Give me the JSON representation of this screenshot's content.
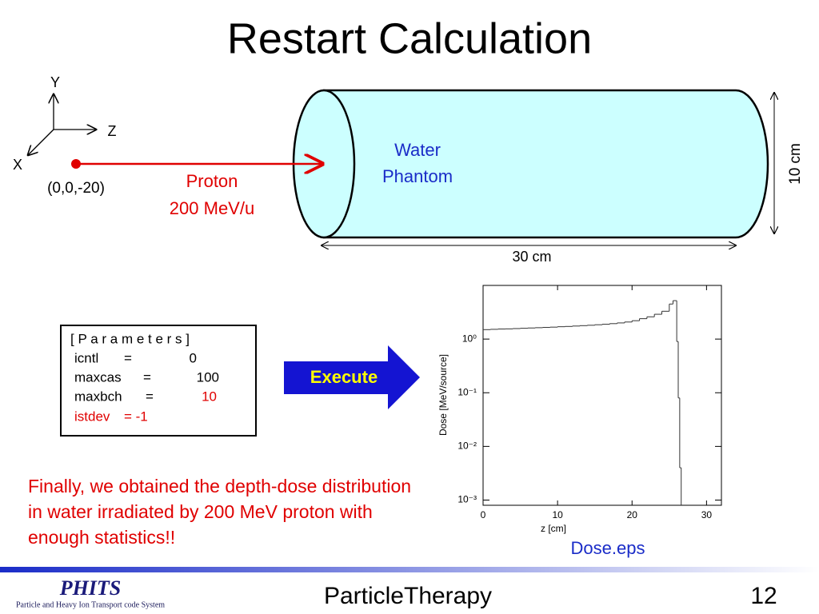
{
  "title": "Restart Calculation",
  "geometry": {
    "axes": {
      "y": "Y",
      "z": "Z",
      "x": "X"
    },
    "source_position": "(0,0,-20)",
    "beam": [
      "Proton",
      "200 MeV/u"
    ],
    "target": [
      "Water",
      "Phantom"
    ],
    "diameter": "10 cm",
    "length": "30 cm"
  },
  "parameters": {
    "header": "[ P a r a m e t e r s ]",
    "rows": [
      [
        "icntl",
        "=",
        "0"
      ],
      [
        "maxcas",
        "=",
        "100"
      ],
      [
        "maxbch",
        "=",
        "10"
      ],
      [
        "istdev",
        "= -1"
      ]
    ]
  },
  "button": "Execute",
  "caption": "Finally, we obtained the depth-dose distribution in water irradiated by 200 MeV proton with enough statistics!!",
  "chart_data": {
    "type": "histogram",
    "xlabel": "z [cm]",
    "ylabel": "Dose [MeV/source]",
    "bins": [
      0,
      1,
      2,
      3,
      4,
      5,
      6,
      7,
      8,
      9,
      10,
      11,
      12,
      13,
      14,
      15,
      16,
      17,
      18,
      19,
      20,
      21,
      22,
      23,
      24,
      25,
      25.5,
      26,
      26.2,
      26.4,
      26.6,
      26.8
    ],
    "values": [
      1.5,
      1.52,
      1.54,
      1.55,
      1.57,
      1.59,
      1.61,
      1.63,
      1.65,
      1.67,
      1.7,
      1.72,
      1.75,
      1.78,
      1.81,
      1.85,
      1.89,
      1.94,
      2.0,
      2.08,
      2.2,
      2.4,
      2.6,
      2.9,
      3.3,
      4.5,
      5.2,
      0.9,
      0.08,
      0.004,
      0.0006
    ],
    "color": "#333333",
    "xlim": [
      0,
      32
    ],
    "ylim": [
      0.0008,
      10
    ],
    "ylog": true,
    "xticks": [
      0,
      10,
      20,
      30
    ],
    "yticks": [
      {
        "value": 1,
        "label": "10⁰"
      },
      {
        "value": 0.1,
        "label": "10⁻¹"
      },
      {
        "value": 0.01,
        "label": "10⁻²"
      },
      {
        "value": 0.001,
        "label": "10⁻³"
      }
    ]
  },
  "figure_label": "Dose.eps",
  "footer": {
    "logo": "PHITS",
    "logo_subtitle": "Particle and Heavy Ion Transport code System",
    "center": "ParticleTherapy",
    "page": "12"
  }
}
